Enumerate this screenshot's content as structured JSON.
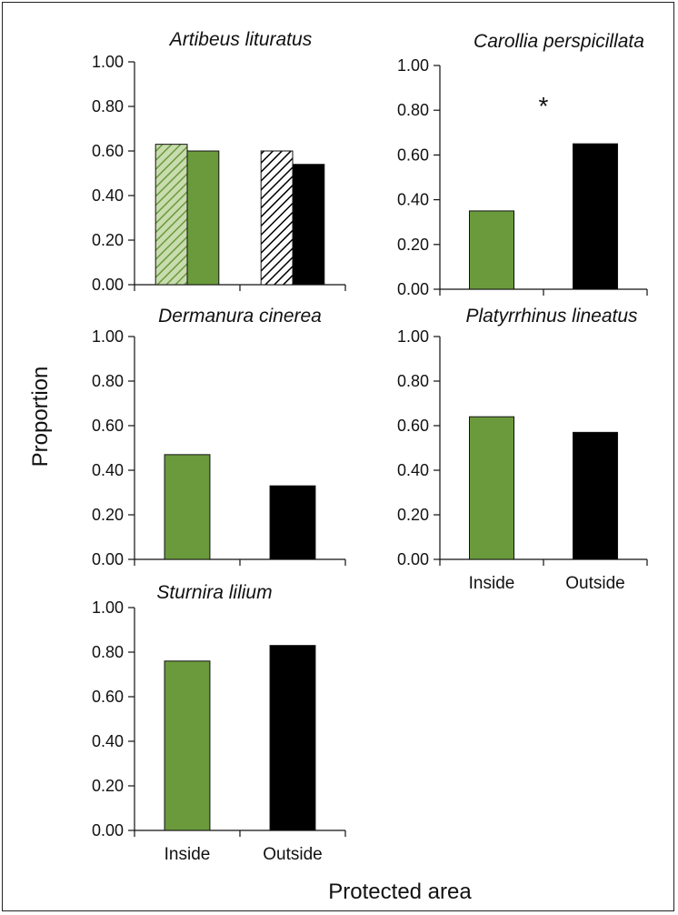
{
  "figure": {
    "y_axis_title": "Proportion",
    "x_axis_title": "Protected area"
  },
  "colors": {
    "inside": "#6a9a3c",
    "outside": "#000000",
    "inside_hatch": "#c8dcae",
    "outside_hatch": "#ffffff",
    "axis": "#111111"
  },
  "chart_data": [
    {
      "type": "bar",
      "title": "Artibeus lituratus",
      "categories": [
        "",
        ""
      ],
      "ylim": [
        0,
        1
      ],
      "yticks": [
        "0.00",
        "0.20",
        "0.40",
        "0.60",
        "0.80",
        "1.00"
      ],
      "grid": false,
      "series": [
        {
          "group": "inside",
          "pattern": "hatched",
          "values": [
            0.63,
            null
          ]
        },
        {
          "group": "inside",
          "pattern": "solid",
          "values": [
            0.6,
            null
          ]
        },
        {
          "group": "outside",
          "pattern": "hatched",
          "values": [
            null,
            0.6
          ]
        },
        {
          "group": "outside",
          "pattern": "solid",
          "values": [
            null,
            0.54
          ]
        }
      ]
    },
    {
      "type": "bar",
      "title": "Carollia perspicillata",
      "categories": [
        "",
        ""
      ],
      "values": [
        0.35,
        0.65
      ],
      "ylim": [
        0,
        1
      ],
      "yticks": [
        "0.00",
        "0.20",
        "0.40",
        "0.60",
        "0.80",
        "1.00"
      ],
      "grid": false,
      "annotation": "*"
    },
    {
      "type": "bar",
      "title": "Dermanura cinerea",
      "categories": [
        "",
        ""
      ],
      "values": [
        0.47,
        0.33
      ],
      "ylim": [
        0,
        1
      ],
      "yticks": [
        "0.00",
        "0.20",
        "0.40",
        "0.60",
        "0.80",
        "1.00"
      ],
      "grid": false
    },
    {
      "type": "bar",
      "title": "Platyrrhinus lineatus",
      "categories": [
        "Inside",
        "Outside"
      ],
      "values": [
        0.64,
        0.57
      ],
      "ylim": [
        0,
        1
      ],
      "yticks": [
        "0.00",
        "0.20",
        "0.40",
        "0.60",
        "0.80",
        "1.00"
      ],
      "grid": false
    },
    {
      "type": "bar",
      "title": "Sturnira lilium",
      "categories": [
        "Inside",
        "Outside"
      ],
      "values": [
        0.76,
        0.83
      ],
      "ylim": [
        0,
        1
      ],
      "yticks": [
        "0.00",
        "0.20",
        "0.40",
        "0.60",
        "0.80",
        "1.00"
      ],
      "grid": false
    }
  ]
}
